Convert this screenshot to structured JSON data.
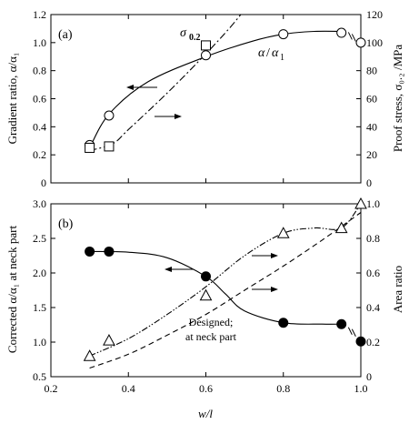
{
  "chart_data": [
    {
      "panel": "(a)",
      "type": "line",
      "xlim": [
        0.2,
        1.0
      ],
      "xticks": [
        "0.2",
        "0.4",
        "0.6",
        "0.8",
        "1.0"
      ],
      "ylabel": "Gradient ratio, α/α₁",
      "ylim": [
        0,
        1.2
      ],
      "yticks": [
        "0",
        "0.2",
        "0.4",
        "0.6",
        "0.8",
        "1.0",
        "1.2"
      ],
      "y2label": "Proof stress, σ₀.₂ /MPa",
      "y2lim": [
        0,
        120
      ],
      "y2ticks": [
        "0",
        "20",
        "40",
        "60",
        "80",
        "100",
        "120"
      ],
      "series": [
        {
          "name": "α/α₁",
          "axis": "left",
          "marker": "open-circle",
          "line": "solid",
          "x": [
            0.3,
            0.35,
            0.6,
            0.8,
            0.95,
            1.0
          ],
          "y": [
            0.27,
            0.48,
            0.91,
            1.06,
            1.07,
            1.0
          ],
          "curve_y": [
            0.25,
            0.49,
            0.72,
            0.9,
            1.01,
            1.06,
            1.08,
            1.08
          ],
          "curve_x": [
            0.3,
            0.35,
            0.45,
            0.6,
            0.72,
            0.8,
            0.88,
            0.95
          ]
        },
        {
          "name": "σ₀.₂",
          "axis": "right",
          "marker": "open-square",
          "line": "dash-dot",
          "x": [
            0.3,
            0.35,
            0.6
          ],
          "y": [
            25,
            26,
            98
          ],
          "curve_x": [
            0.3,
            0.36,
            0.4,
            0.5,
            0.6,
            0.66,
            0.69
          ],
          "curve_y": [
            23,
            28,
            38,
            64,
            92,
            110,
            120
          ]
        }
      ],
      "annotations": [
        {
          "text": "σ",
          "sub": "0.2"
        },
        {
          "text": "α",
          "mid": "/",
          "tail": "α",
          "sub": "1"
        }
      ]
    },
    {
      "panel": "(b)",
      "type": "line",
      "xlabel": "w/l",
      "xlim": [
        0.2,
        1.0
      ],
      "xticks": [
        "0.2",
        "0.4",
        "0.6",
        "0.8",
        "1.0"
      ],
      "ylabel": "Corrected α/α₁ at neck part",
      "ylim": [
        0.5,
        3.0
      ],
      "yticks": [
        "0.5",
        "1.0",
        "1.5",
        "2.0",
        "2.5",
        "3.0"
      ],
      "y2label": "Area  ratio",
      "y2lim": [
        0,
        1.0
      ],
      "y2ticks": [
        "0",
        "0.2",
        "0.4",
        "0.6",
        "0.8",
        "1.0"
      ],
      "series": [
        {
          "name": "Corrected α/α₁",
          "axis": "left",
          "marker": "filled-circle",
          "line": "solid",
          "x": [
            0.3,
            0.35,
            0.6,
            0.8,
            0.95,
            1.0
          ],
          "y": [
            2.31,
            2.31,
            1.95,
            1.28,
            1.26,
            1.01
          ],
          "curve_x": [
            0.3,
            0.4,
            0.5,
            0.6,
            0.65,
            0.7,
            0.8,
            0.9,
            0.95
          ],
          "curve_y": [
            2.31,
            2.3,
            2.22,
            1.95,
            1.7,
            1.45,
            1.28,
            1.26,
            1.26
          ]
        },
        {
          "name": "Area ratio",
          "axis": "right",
          "marker": "open-triangle",
          "line": "dash-dot-dot",
          "x": [
            0.3,
            0.35,
            0.6,
            0.8,
            0.95,
            1.0
          ],
          "y": [
            0.12,
            0.21,
            0.47,
            0.83,
            0.86,
            1.0
          ],
          "curve_x": [
            0.3,
            0.4,
            0.5,
            0.6,
            0.7,
            0.8,
            0.88,
            0.95,
            1.0
          ],
          "curve_y": [
            0.12,
            0.22,
            0.36,
            0.52,
            0.7,
            0.83,
            0.86,
            0.86,
            1.0
          ]
        },
        {
          "name": "Designed; at neck part",
          "axis": "right",
          "marker": "none",
          "line": "dashed",
          "curve_x": [
            0.3,
            0.4,
            0.5,
            0.6,
            0.7,
            0.8,
            0.9,
            1.0
          ],
          "curve_y": [
            0.05,
            0.13,
            0.24,
            0.36,
            0.5,
            0.64,
            0.79,
            0.95
          ]
        }
      ],
      "annotations": [
        {
          "text": "Designed;"
        },
        {
          "text": "at neck part"
        }
      ]
    }
  ],
  "xlabel_text": "w/l"
}
